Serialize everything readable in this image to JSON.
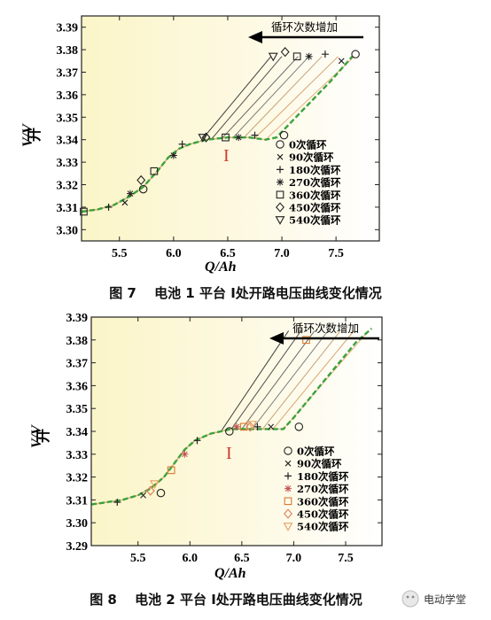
{
  "chart_data": [
    {
      "type": "line",
      "caption": "图 7　 电池 1 平台 Ⅰ处开路电压曲线变化情况",
      "xlabel": "Q/Ah",
      "ylabel": "V/V",
      "ylabel_sub": "开",
      "xlim": [
        5.15,
        7.9
      ],
      "ylim": [
        3.295,
        3.395
      ],
      "xticks": [
        "5.5",
        "6.0",
        "6.5",
        "7.0",
        "7.5"
      ],
      "yticks": [
        "3.39",
        "3.38",
        "3.37",
        "3.36",
        "3.35",
        "3.34",
        "3.33",
        "3.32",
        "3.31",
        "3.30"
      ],
      "annotation": "循环次数增加",
      "region_label": "I",
      "legend": [
        "0次循环",
        "90次循环",
        "180次循环",
        "270次循环",
        "360次循环",
        "450次循环",
        "540次循环"
      ],
      "series_colors": [
        "#3a3a3a",
        "#505050",
        "#676767",
        "#7d7d7d",
        "#c4a07a",
        "#d8a068",
        "#e8b080"
      ],
      "marker_colors": [
        "#222222",
        "#222222",
        "#222222",
        "#222222",
        "#222222",
        "#222222",
        "#222222"
      ],
      "curve": {
        "x": [
          5.15,
          5.3,
          5.45,
          5.6,
          5.72,
          5.85,
          5.95,
          6.05,
          6.15,
          6.3,
          6.5,
          6.7,
          6.85,
          6.95,
          7.05,
          7.25,
          7.45,
          7.65
        ],
        "y": [
          3.308,
          3.309,
          3.311,
          3.315,
          3.319,
          3.326,
          3.332,
          3.336,
          3.338,
          3.34,
          3.341,
          3.341,
          3.34,
          3.341,
          3.346,
          3.356,
          3.366,
          3.377
        ]
      },
      "plateau_end_x": [
        6.25,
        6.35,
        6.45,
        6.55,
        6.65,
        6.75,
        6.85
      ],
      "top_x": [
        6.9,
        7.0,
        7.15,
        7.25,
        7.37,
        7.52,
        7.67
      ],
      "top_y": 3.377,
      "markers": [
        {
          "s": 0,
          "x": [
            5.72,
            7.02,
            7.68
          ],
          "y": [
            3.318,
            3.342,
            3.378
          ]
        },
        {
          "s": 1,
          "x": [
            5.55,
            7.55
          ],
          "y": [
            3.312,
            3.375
          ]
        },
        {
          "s": 2,
          "x": [
            5.4,
            6.08,
            6.75,
            7.4
          ],
          "y": [
            3.31,
            3.338,
            3.342,
            3.378
          ]
        },
        {
          "s": 3,
          "x": [
            5.6,
            6.0,
            6.6,
            7.25
          ],
          "y": [
            3.316,
            3.333,
            3.341,
            3.377
          ]
        },
        {
          "s": 4,
          "x": [
            5.17,
            5.82,
            6.48,
            7.14
          ],
          "y": [
            3.308,
            3.326,
            3.341,
            3.377
          ]
        },
        {
          "s": 5,
          "x": [
            5.7,
            6.3,
            7.03
          ],
          "y": [
            3.322,
            3.341,
            3.379
          ]
        },
        {
          "s": 6,
          "x": [
            6.27,
            6.92
          ],
          "y": [
            3.341,
            3.377
          ]
        }
      ]
    },
    {
      "type": "line",
      "caption": "图 8　 电池 2 平台 Ⅰ处开路电压曲线变化情况",
      "xlabel": "Q/Ah",
      "ylabel": "V/V",
      "ylabel_sub": "开",
      "xlim": [
        5.05,
        7.85
      ],
      "ylim": [
        3.29,
        3.39
      ],
      "xticks": [
        "5.5",
        "6.0",
        "6.5",
        "7.0",
        "7.5"
      ],
      "yticks": [
        "3.39",
        "3.38",
        "3.37",
        "3.36",
        "3.35",
        "3.34",
        "3.33",
        "3.32",
        "3.31",
        "3.30",
        "3.29"
      ],
      "annotation": "循环次数增加",
      "region_label": "I",
      "legend": [
        "0次循环",
        "90次循环",
        "180次循环",
        "270次循环",
        "360次循环",
        "450次循环",
        "540次循环"
      ],
      "series_colors": [
        "#3a3a3a",
        "#505050",
        "#676767",
        "#7d7d7d",
        "#c4a07a",
        "#d8a068",
        "#e8b080"
      ],
      "marker_colors": [
        "#222222",
        "#222222",
        "#222222",
        "#c0504d",
        "#d87830",
        "#e07850",
        "#e8a060"
      ],
      "curve": {
        "x": [
          5.05,
          5.2,
          5.35,
          5.5,
          5.62,
          5.75,
          5.85,
          5.95,
          6.05,
          6.2,
          6.4,
          6.6,
          6.8,
          6.9,
          7.0,
          7.2,
          7.4,
          7.6,
          7.75
        ],
        "y": [
          3.308,
          3.309,
          3.31,
          3.312,
          3.315,
          3.32,
          3.326,
          3.332,
          3.336,
          3.339,
          3.341,
          3.341,
          3.341,
          3.341,
          3.346,
          3.357,
          3.368,
          3.379,
          3.385
        ]
      },
      "plateau_end_x": [
        6.3,
        6.4,
        6.5,
        6.6,
        6.7,
        6.8,
        6.9
      ],
      "top_x": [
        6.95,
        7.07,
        7.2,
        7.33,
        7.45,
        7.58,
        7.72
      ],
      "top_y": 3.384,
      "markers": [
        {
          "s": 0,
          "x": [
            5.72,
            6.38,
            7.05
          ],
          "y": [
            3.313,
            3.34,
            3.342
          ]
        },
        {
          "s": 1,
          "x": [
            5.55,
            6.78
          ],
          "y": [
            3.312,
            3.342
          ]
        },
        {
          "s": 2,
          "x": [
            5.3,
            6.07,
            6.65
          ],
          "y": [
            3.309,
            3.336,
            3.342
          ]
        },
        {
          "s": 3,
          "x": [
            5.95,
            6.45
          ],
          "y": [
            3.33,
            3.342
          ]
        },
        {
          "s": 4,
          "x": [
            5.82,
            6.52,
            7.12
          ],
          "y": [
            3.323,
            3.342,
            3.38
          ]
        },
        {
          "s": 5,
          "x": [
            5.62,
            6.58
          ],
          "y": [
            3.314,
            3.342
          ]
        },
        {
          "s": 6,
          "x": [
            5.66,
            6.6
          ],
          "y": [
            3.317,
            3.343
          ]
        }
      ]
    }
  ],
  "watermark": "电动学堂"
}
